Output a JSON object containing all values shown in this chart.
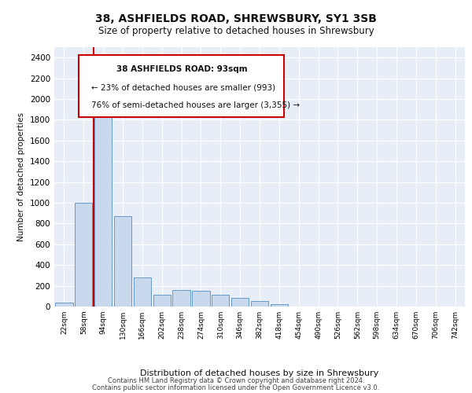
{
  "title1": "38, ASHFIELDS ROAD, SHREWSBURY, SY1 3SB",
  "title2": "Size of property relative to detached houses in Shrewsbury",
  "xlabel": "Distribution of detached houses by size in Shrewsbury",
  "ylabel": "Number of detached properties",
  "footer1": "Contains HM Land Registry data © Crown copyright and database right 2024.",
  "footer2": "Contains public sector information licensed under the Open Government Licence v3.0.",
  "annotation_line1": "38 ASHFIELDS ROAD: 93sqm",
  "annotation_line2": "← 23% of detached houses are smaller (993)",
  "annotation_line3": "76% of semi-detached houses are larger (3,355) →",
  "bar_color": "#c8d9ee",
  "bar_edge_color": "#6699cc",
  "marker_color": "#cc0000",
  "background_color": "#e8eef8",
  "grid_color": "#ffffff",
  "categories": [
    "22sqm",
    "58sqm",
    "94sqm",
    "130sqm",
    "166sqm",
    "202sqm",
    "238sqm",
    "274sqm",
    "310sqm",
    "346sqm",
    "382sqm",
    "418sqm",
    "454sqm",
    "490sqm",
    "526sqm",
    "562sqm",
    "598sqm",
    "634sqm",
    "670sqm",
    "706sqm",
    "742sqm"
  ],
  "values": [
    40,
    1000,
    1920,
    870,
    280,
    110,
    160,
    150,
    110,
    80,
    50,
    20,
    0,
    0,
    0,
    0,
    0,
    0,
    0,
    0,
    0
  ],
  "ylim": [
    0,
    2500
  ],
  "yticks": [
    0,
    200,
    400,
    600,
    800,
    1000,
    1200,
    1400,
    1600,
    1800,
    2000,
    2200,
    2400
  ],
  "red_line_x": 1.5
}
